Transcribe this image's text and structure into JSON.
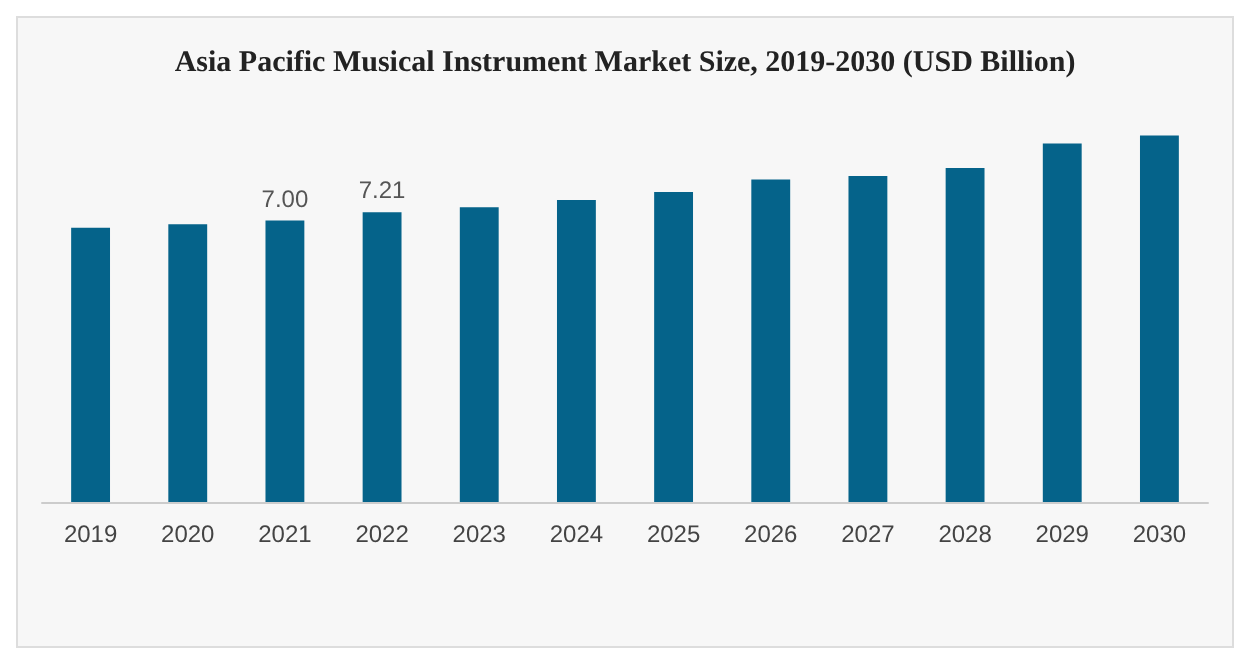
{
  "chart_data": {
    "type": "bar",
    "title": "Asia Pacific Musical Instrument Market Size, 2019-2030 (USD Billion)",
    "categories": [
      "2019",
      "2020",
      "2021",
      "2022",
      "2023",
      "2024",
      "2025",
      "2026",
      "2027",
      "2028",
      "2029",
      "2030"
    ],
    "series": [
      {
        "color": "#05638a",
        "values": [
          6.82,
          6.91,
          7.0,
          7.21,
          7.33,
          7.51,
          7.71,
          8.02,
          8.11,
          8.31,
          8.92,
          9.12
        ],
        "value_labels": [
          null,
          null,
          "7.00",
          "7.21",
          null,
          null,
          null,
          null,
          null,
          null,
          null,
          null
        ]
      }
    ],
    "data_labels": false
  }
}
